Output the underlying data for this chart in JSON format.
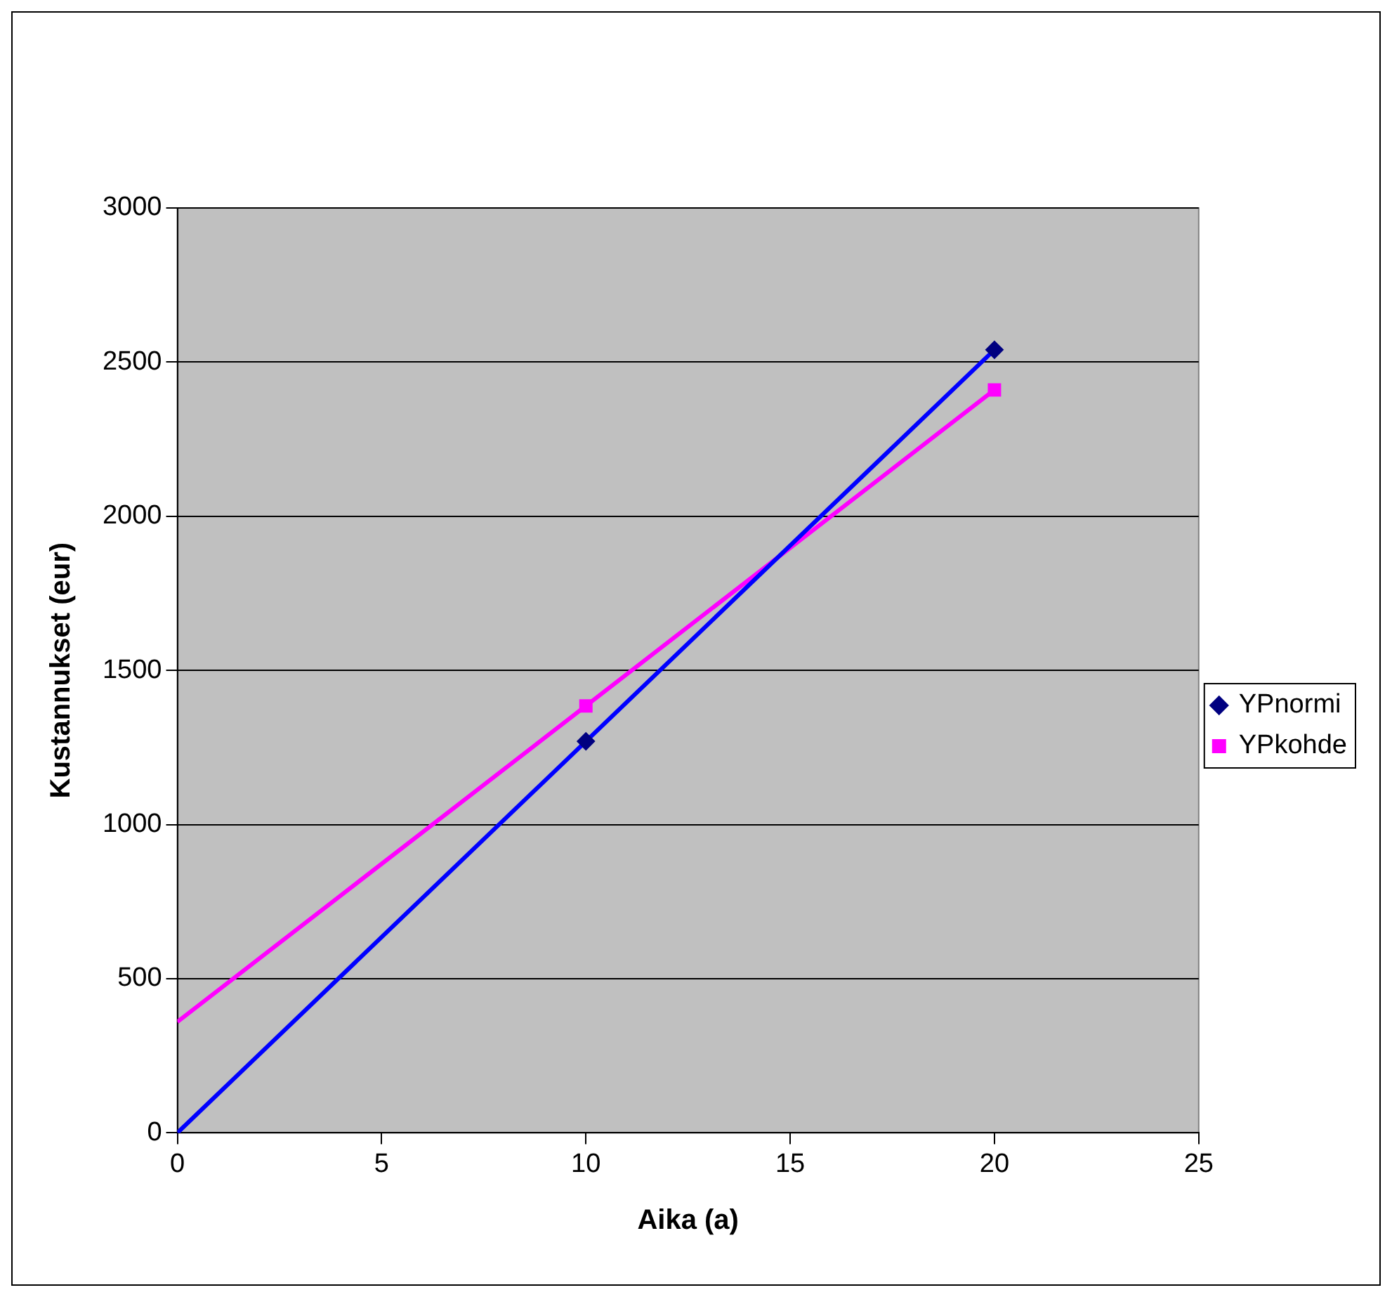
{
  "chart_data": {
    "type": "scatter",
    "xlabel": "Aika (a)",
    "ylabel": "Kustannukset (eur)",
    "xlim": [
      0,
      25
    ],
    "xticks": [
      0,
      5,
      10,
      15,
      20,
      25
    ],
    "ylim": [
      0,
      3000
    ],
    "yticks": [
      0,
      500,
      1000,
      1500,
      2000,
      2500,
      3000
    ],
    "grid": "y",
    "legend": "right",
    "series": [
      {
        "name": "YPnormi",
        "color": "#000080",
        "marker": "diamond",
        "x": [
          10,
          20
        ],
        "values": [
          1270,
          2540
        ]
      },
      {
        "name": "YPkohde",
        "color": "#ff00ff",
        "marker": "square",
        "x": [
          10,
          20
        ],
        "values": [
          1385,
          2410
        ]
      },
      {
        "type": "line",
        "color": "#0000ff",
        "marker": "none",
        "line_style": "solid",
        "x": [
          0,
          20
        ],
        "values": [
          0,
          2540
        ]
      },
      {
        "type": "line",
        "color": "#ff00ff",
        "marker": "none",
        "line_style": "solid",
        "x": [
          0,
          20
        ],
        "values": [
          360,
          2410
        ]
      }
    ]
  }
}
